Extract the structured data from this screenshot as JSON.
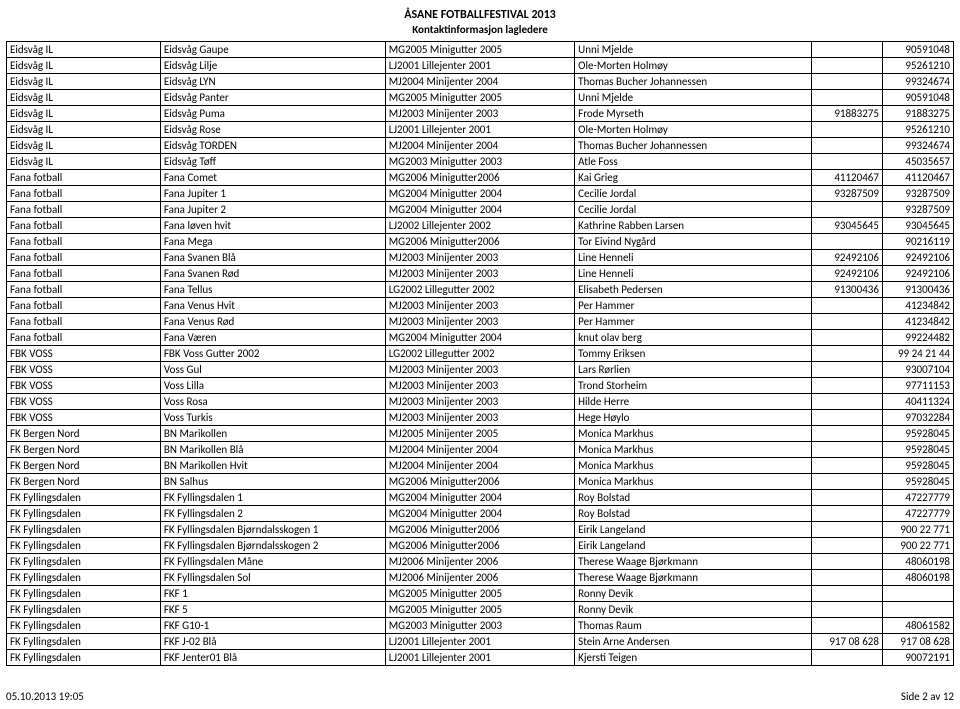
{
  "header": {
    "title": "ÅSANE FOTBALLFESTIVAL 2013",
    "subtitle": "Kontaktinformasjon lagledere"
  },
  "footer": {
    "left": "05.10.2013 19:05",
    "right": "Side 2 av 12"
  },
  "table": {
    "col_widths_pct": [
      13,
      19,
      16,
      20,
      6,
      6
    ],
    "rows": [
      [
        "Eidsvåg IL",
        "Eidsvåg Gaupe",
        "MG2005 Minigutter 2005",
        "Unni Mjelde",
        "",
        "90591048"
      ],
      [
        "Eidsvåg IL",
        "Eidsvåg Lilje",
        "LJ2001 Lillejenter 2001",
        "Ole-Morten Holmøy",
        "",
        "95261210"
      ],
      [
        "Eidsvåg IL",
        "Eidsvåg LYN",
        "MJ2004 Minijenter 2004",
        "Thomas Bucher Johannessen",
        "",
        "99324674"
      ],
      [
        "Eidsvåg IL",
        "Eidsvåg Panter",
        "MG2005 Minigutter 2005",
        "Unni Mjelde",
        "",
        "90591048"
      ],
      [
        "Eidsvåg IL",
        "Eidsvåg Puma",
        "MJ2003 Minijenter 2003",
        "Frode Myrseth",
        "91883275",
        "91883275"
      ],
      [
        "Eidsvåg IL",
        "Eidsvåg Rose",
        "LJ2001 Lillejenter 2001",
        "Ole-Morten Holmøy",
        "",
        "95261210"
      ],
      [
        "Eidsvåg IL",
        "Eidsvåg TORDEN",
        "MJ2004 Minijenter 2004",
        "Thomas Bucher Johannessen",
        "",
        "99324674"
      ],
      [
        "Eidsvåg IL",
        "Eidsvåg Tøff",
        "MG2003 Minigutter 2003",
        "Atle Foss",
        "",
        "45035657"
      ],
      [
        "Fana fotball",
        "Fana Comet",
        "MG2006 Minigutter2006",
        "Kai Grieg",
        "41120467",
        "41120467"
      ],
      [
        "Fana fotball",
        "Fana Jupiter 1",
        "MG2004 Minigutter 2004",
        "Cecilie Jordal",
        "93287509",
        "93287509"
      ],
      [
        "Fana fotball",
        "Fana Jupiter 2",
        "MG2004 Minigutter 2004",
        "Cecilie Jordal",
        "",
        "93287509"
      ],
      [
        "Fana fotball",
        "Fana løven hvit",
        "LJ2002 Lillejenter 2002",
        "Kathrine Rabben Larsen",
        "93045645",
        "93045645"
      ],
      [
        "Fana fotball",
        "Fana Mega",
        "MG2006 Minigutter2006",
        "Tor Eivind Nygård",
        "",
        "90216119"
      ],
      [
        "Fana fotball",
        "Fana Svanen Blå",
        "MJ2003 Minijenter 2003",
        "Line Henneli",
        "92492106",
        "92492106"
      ],
      [
        "Fana fotball",
        "Fana Svanen Rød",
        "MJ2003 Minijenter 2003",
        "Line Henneli",
        "92492106",
        "92492106"
      ],
      [
        "Fana fotball",
        "Fana Tellus",
        "LG2002 Lillegutter 2002",
        "Elisabeth Pedersen",
        "91300436",
        "91300436"
      ],
      [
        "Fana fotball",
        "Fana Venus Hvit",
        "MJ2003 Minijenter 2003",
        "Per Hammer",
        "",
        "41234842"
      ],
      [
        "Fana fotball",
        "Fana Venus Rød",
        "MJ2003 Minijenter 2003",
        "Per Hammer",
        "",
        "41234842"
      ],
      [
        "Fana fotball",
        "Fana Væren",
        "MG2004 Minigutter 2004",
        "knut olav berg",
        "",
        "99224482"
      ],
      [
        "FBK VOSS",
        "FBK Voss Gutter 2002",
        "LG2002 Lillegutter 2002",
        "Tommy Eriksen",
        "",
        "99 24 21 44"
      ],
      [
        "FBK VOSS",
        "Voss Gul",
        "MJ2003 Minijenter 2003",
        "Lars Rørlien",
        "",
        "93007104"
      ],
      [
        "FBK VOSS",
        "Voss Lilla",
        "MJ2003 Minijenter 2003",
        "Trond Storheim",
        "",
        "97711153"
      ],
      [
        "FBK VOSS",
        "Voss Rosa",
        "MJ2003 Minijenter 2003",
        "Hilde Herre",
        "",
        "40411324"
      ],
      [
        "FBK VOSS",
        "Voss Turkis",
        "MJ2003 Minijenter 2003",
        "Hege Høylo",
        "",
        "97032284"
      ],
      [
        "FK Bergen Nord",
        "BN Marikollen",
        "MJ2005 Minijenter 2005",
        "Monica Markhus",
        "",
        "95928045"
      ],
      [
        "FK Bergen Nord",
        "BN Marikollen Blå",
        "MJ2004 Minijenter 2004",
        "Monica Markhus",
        "",
        "95928045"
      ],
      [
        "FK Bergen Nord",
        "BN Marikollen Hvit",
        "MJ2004 Minijenter 2004",
        "Monica Markhus",
        "",
        "95928045"
      ],
      [
        "FK Bergen Nord",
        "BN Salhus",
        "MG2006 Minigutter2006",
        "Monica Markhus",
        "",
        "95928045"
      ],
      [
        "FK Fyllingsdalen",
        "FK Fyllingsdalen 1",
        "MG2004 Minigutter 2004",
        "Roy Bolstad",
        "",
        "47227779"
      ],
      [
        "FK Fyllingsdalen",
        "FK Fyllingsdalen 2",
        "MG2004 Minigutter 2004",
        "Roy Bolstad",
        "",
        "47227779"
      ],
      [
        "FK Fyllingsdalen",
        "FK Fyllingsdalen Bjørndalsskogen 1",
        "MG2006 Minigutter2006",
        "Eirik Langeland",
        "",
        "900 22 771"
      ],
      [
        "FK Fyllingsdalen",
        "FK Fyllingsdalen Bjørndalsskogen 2",
        "MG2006 Minigutter2006",
        "Eirik Langeland",
        "",
        "900 22 771"
      ],
      [
        "FK Fyllingsdalen",
        "FK Fyllingsdalen Måne",
        "MJ2006 Minijenter 2006",
        "Therese Waage Bjørkmann",
        "",
        "48060198"
      ],
      [
        "FK Fyllingsdalen",
        "FK Fyllingsdalen Sol",
        "MJ2006 Minijenter 2006",
        "Therese Waage Bjørkmann",
        "",
        "48060198"
      ],
      [
        "FK Fyllingsdalen",
        "FKF 1",
        "MG2005 Minigutter 2005",
        "Ronny Devik",
        "",
        ""
      ],
      [
        "FK Fyllingsdalen",
        "FKF 5",
        "MG2005 Minigutter 2005",
        "Ronny Devik",
        "",
        ""
      ],
      [
        "FK Fyllingsdalen",
        "FKF G10-1",
        "MG2003 Minigutter 2003",
        "Thomas Raum",
        "",
        "48061582"
      ],
      [
        "FK Fyllingsdalen",
        "FKF J-02 Blå",
        "LJ2001 Lillejenter 2001",
        "Stein Arne Andersen",
        "917 08 628",
        "917 08 628"
      ],
      [
        "FK Fyllingsdalen",
        "FKF Jenter01 Blå",
        "LJ2001 Lillejenter 2001",
        "Kjersti Teigen",
        "",
        "90072191"
      ]
    ]
  }
}
